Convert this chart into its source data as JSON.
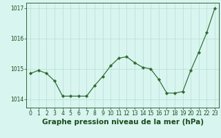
{
  "hours": [
    0,
    1,
    2,
    3,
    4,
    5,
    6,
    7,
    8,
    9,
    10,
    11,
    12,
    13,
    14,
    15,
    16,
    17,
    18,
    19,
    20,
    21,
    22,
    23
  ],
  "pressure": [
    1014.85,
    1014.95,
    1014.85,
    1014.6,
    1014.1,
    1014.1,
    1014.1,
    1014.1,
    1014.45,
    1014.75,
    1015.1,
    1015.35,
    1015.4,
    1015.2,
    1015.05,
    1015.0,
    1014.65,
    1014.2,
    1014.2,
    1014.25,
    1014.95,
    1015.55,
    1016.2,
    1017.0
  ],
  "ylim": [
    1013.72,
    1017.18
  ],
  "yticks": [
    1014,
    1015,
    1016,
    1017
  ],
  "line_color": "#2d6a2d",
  "marker_color": "#2d6a2d",
  "bg_color": "#d8f5f0",
  "grid_color": "#b8ddd6",
  "xlabel": "Graphe pression niveau de la mer (hPa)",
  "xlabel_color": "#1a4a1a",
  "tick_color": "#1a4a1a",
  "tick_fontsize": 5.5,
  "xlabel_fontsize": 7.5
}
